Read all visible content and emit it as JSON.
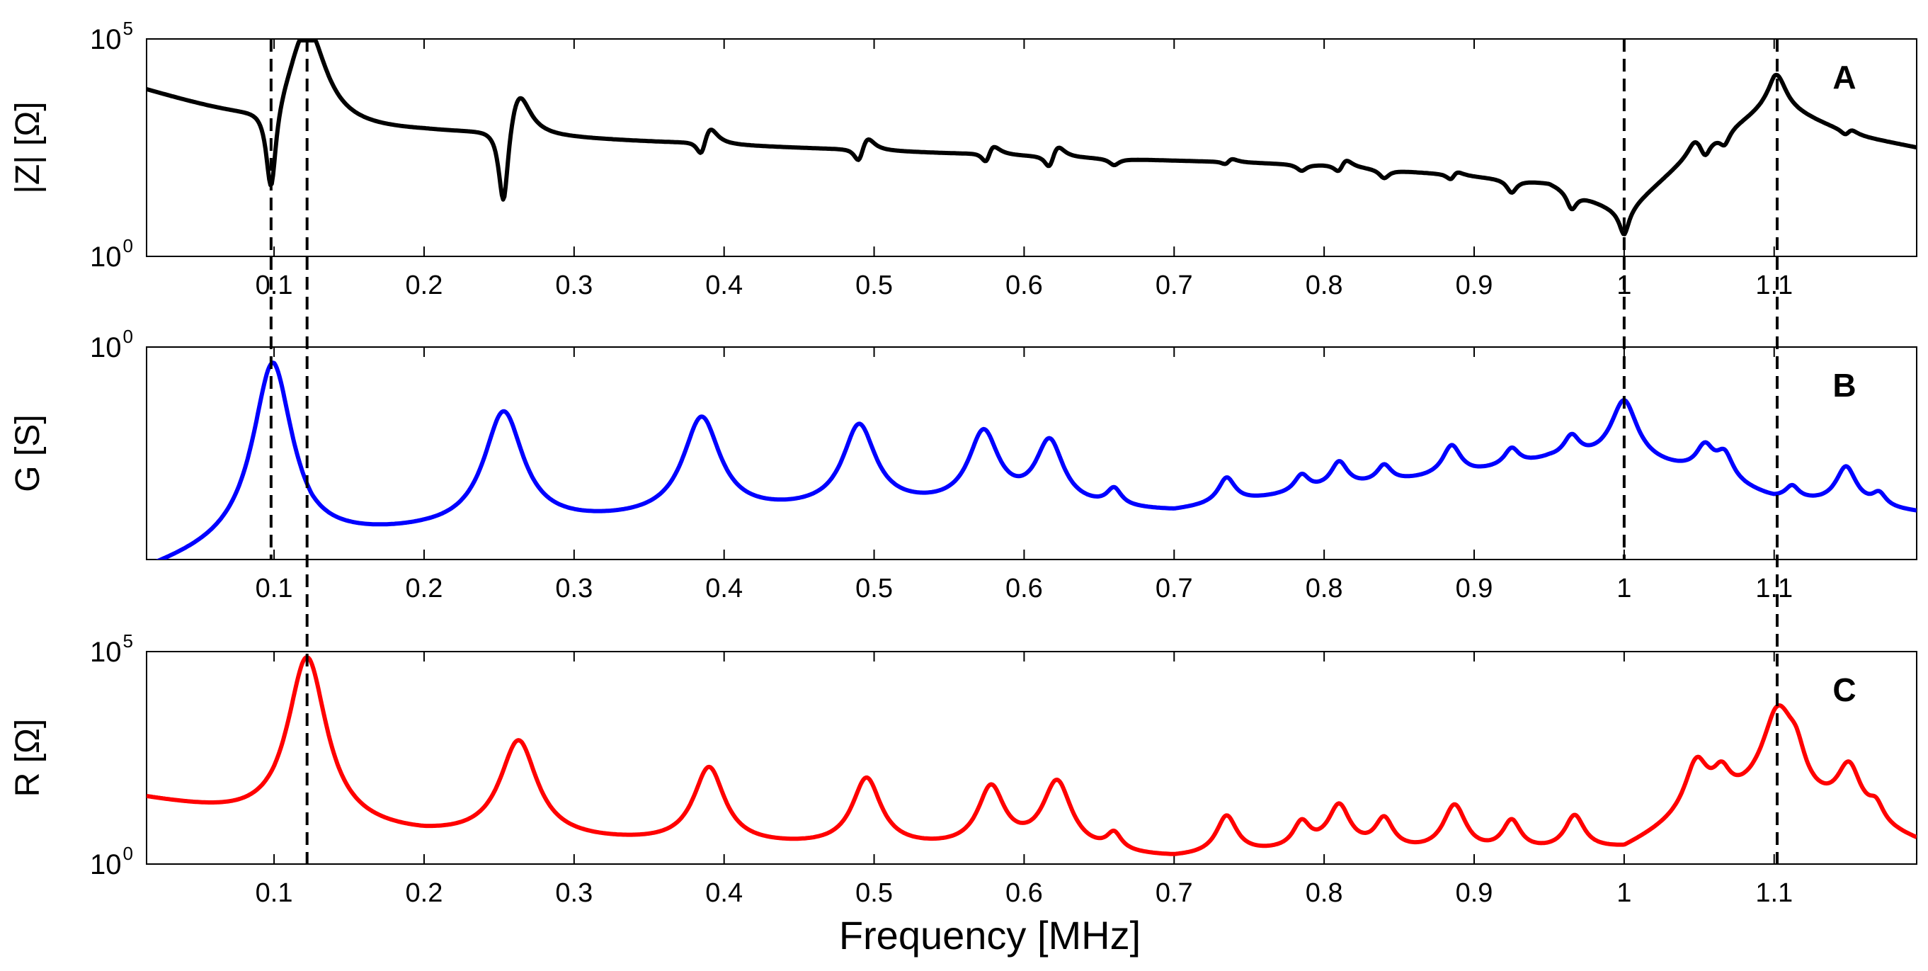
{
  "chart_data": {
    "type": "line",
    "xlabel": "Frequency [MHz]",
    "xlim": [
      0.015,
      1.195
    ],
    "xticks": [
      0.1,
      0.2,
      0.3,
      0.4,
      0.5,
      0.6,
      0.7,
      0.8,
      0.9,
      1,
      1.1
    ],
    "xtick_labels": [
      "0.1",
      "0.2",
      "0.3",
      "0.4",
      "0.5",
      "0.6",
      "0.7",
      "0.8",
      "0.9",
      "1",
      "1.1"
    ],
    "vlines": [
      0.098,
      0.122,
      1.0,
      1.102
    ],
    "panels": [
      {
        "letter": "A",
        "ylabel": "|Z| [Ω]",
        "ylim_log10": [
          0,
          5
        ],
        "yticks": [
          {
            "base": "10",
            "exp": "5"
          },
          {
            "base": "10",
            "exp": "0"
          }
        ],
        "color": "#000000",
        "baseline_log10": [
          [
            0.015,
            3.8
          ],
          [
            0.1,
            2.9
          ],
          [
            0.2,
            2.85
          ],
          [
            0.4,
            2.55
          ],
          [
            0.6,
            2.3
          ],
          [
            0.8,
            2.1
          ],
          [
            0.95,
            1.7
          ],
          [
            1.0,
            1.0
          ],
          [
            1.05,
            2.5
          ],
          [
            1.1,
            3.5
          ],
          [
            1.15,
            2.8
          ],
          [
            1.195,
            2.5
          ]
        ],
        "dips": [
          [
            0.098,
            2.0
          ],
          [
            0.253,
            2.0
          ],
          [
            0.385,
            0.5
          ],
          [
            0.49,
            0.45
          ],
          [
            0.575,
            0.45
          ],
          [
            0.617,
            0.4
          ],
          [
            0.66,
            0.15
          ],
          [
            0.735,
            0.2
          ],
          [
            0.785,
            0.15
          ],
          [
            0.81,
            0.25
          ],
          [
            0.84,
            0.2
          ],
          [
            0.885,
            0.3
          ],
          [
            0.925,
            0.3
          ],
          [
            0.965,
            0.4
          ],
          [
            1.0,
            0.5
          ],
          [
            1.054,
            0.35
          ],
          [
            1.067,
            0.3
          ],
          [
            1.148,
            0.25
          ]
        ],
        "peaks": [
          [
            0.122,
            2.4
          ],
          [
            0.263,
            1.1
          ],
          [
            0.39,
            0.5
          ],
          [
            0.495,
            0.4
          ],
          [
            0.578,
            0.4
          ],
          [
            0.622,
            0.35
          ],
          [
            0.737,
            0.2
          ],
          [
            0.814,
            0.25
          ],
          [
            0.887,
            0.25
          ],
          [
            1.047,
            0.3
          ],
          [
            1.102,
            0.7
          ],
          [
            1.15,
            0.25
          ]
        ]
      },
      {
        "letter": "B",
        "ylabel": "G [S]",
        "ylim_log10": [
          -5,
          0
        ],
        "yticks": [
          {
            "base": "10",
            "exp": "0"
          }
        ],
        "color": "#0000ff",
        "baseline_log10": [
          [
            0.015,
            -5.3
          ],
          [
            0.1,
            -4.4
          ],
          [
            0.125,
            -4.6
          ],
          [
            0.2,
            -4.4
          ],
          [
            0.3,
            -4.2
          ],
          [
            0.4,
            -4.0
          ],
          [
            0.5,
            -3.8
          ],
          [
            0.6,
            -3.8
          ],
          [
            0.7,
            -3.9
          ],
          [
            0.8,
            -3.4
          ],
          [
            0.9,
            -3.0
          ],
          [
            0.95,
            -2.7
          ],
          [
            1.0,
            -2.7
          ],
          [
            1.05,
            -3.0
          ],
          [
            1.1,
            -3.6
          ],
          [
            1.195,
            -3.9
          ]
        ],
        "peaks": [
          [
            0.099,
            4.0
          ],
          [
            0.253,
            2.7
          ],
          [
            0.385,
            2.3
          ],
          [
            0.49,
            1.9
          ],
          [
            0.573,
            1.7
          ],
          [
            0.617,
            1.5
          ],
          [
            0.66,
            0.4
          ],
          [
            0.735,
            0.6
          ],
          [
            0.785,
            0.4
          ],
          [
            0.81,
            0.6
          ],
          [
            0.84,
            0.4
          ],
          [
            0.885,
            0.7
          ],
          [
            0.925,
            0.4
          ],
          [
            0.965,
            0.5
          ],
          [
            1.0,
            1.4
          ],
          [
            1.054,
            0.6
          ],
          [
            1.067,
            0.6
          ],
          [
            1.112,
            0.3
          ],
          [
            1.148,
            0.9
          ],
          [
            1.17,
            0.3
          ]
        ]
      },
      {
        "letter": "C",
        "ylabel": "R [Ω]",
        "ylim_log10": [
          0,
          5
        ],
        "yticks": [
          {
            "base": "10",
            "exp": "5"
          },
          {
            "base": "10",
            "exp": "0"
          }
        ],
        "color": "#ff0000",
        "baseline_log10": [
          [
            0.015,
            1.5
          ],
          [
            0.1,
            0.9
          ],
          [
            0.2,
            0.6
          ],
          [
            0.4,
            0.4
          ],
          [
            0.6,
            0.3
          ],
          [
            0.7,
            0.1
          ],
          [
            0.8,
            0.3
          ],
          [
            0.9,
            0.2
          ],
          [
            1.0,
            0.3
          ],
          [
            1.05,
            1.2
          ],
          [
            1.1,
            1.5
          ],
          [
            1.195,
            0.5
          ]
        ],
        "peaks": [
          [
            0.122,
            4.0
          ],
          [
            0.263,
            2.3
          ],
          [
            0.39,
            1.8
          ],
          [
            0.495,
            1.6
          ],
          [
            0.578,
            1.4
          ],
          [
            0.622,
            1.6
          ],
          [
            0.66,
            0.4
          ],
          [
            0.735,
            0.9
          ],
          [
            0.785,
            0.6
          ],
          [
            0.81,
            1.0
          ],
          [
            0.84,
            0.7
          ],
          [
            0.887,
            1.1
          ],
          [
            0.925,
            0.7
          ],
          [
            0.967,
            0.8
          ],
          [
            1.048,
            1.1
          ],
          [
            1.065,
            0.6
          ],
          [
            1.103,
            2.0
          ],
          [
            1.115,
            0.6
          ],
          [
            1.15,
            1.2
          ],
          [
            1.168,
            0.4
          ]
        ]
      }
    ]
  }
}
